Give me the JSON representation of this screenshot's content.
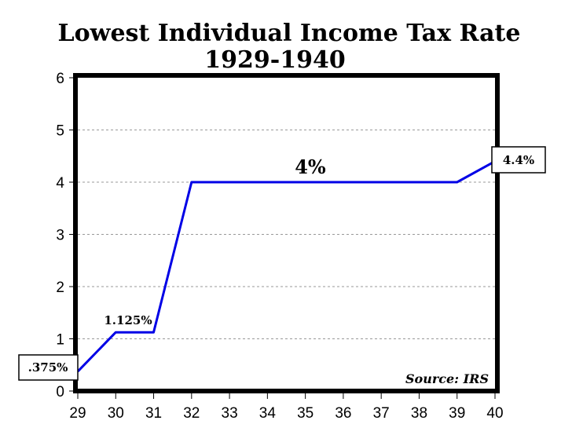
{
  "chart_data": {
    "type": "line",
    "title": "Lowest Individual Income Tax Rate",
    "subtitle": "1929-1940",
    "x": [
      29,
      30,
      31,
      32,
      33,
      34,
      35,
      36,
      37,
      38,
      39,
      40
    ],
    "xticks": [
      "29",
      "30",
      "31",
      "32",
      "33",
      "34",
      "35",
      "36",
      "37",
      "38",
      "39",
      "40"
    ],
    "series": [
      {
        "name": "Lowest rate",
        "values": [
          0.375,
          1.125,
          1.125,
          4,
          4,
          4,
          4,
          4,
          4,
          4,
          4,
          4.4
        ],
        "color": "#0000e6"
      }
    ],
    "yticks": [
      "0",
      "1",
      "2",
      "3",
      "4",
      "5",
      "6"
    ],
    "ylim": [
      0,
      6
    ],
    "xlim": [
      29,
      40
    ],
    "grid": true,
    "annotations": {
      "first": {
        "text": ".375%",
        "boxed": true
      },
      "second": {
        "text": "1.125%"
      },
      "middle": {
        "text": "4%"
      },
      "last": {
        "text": "4.4%",
        "boxed": true
      }
    },
    "source": "Source: IRS"
  }
}
